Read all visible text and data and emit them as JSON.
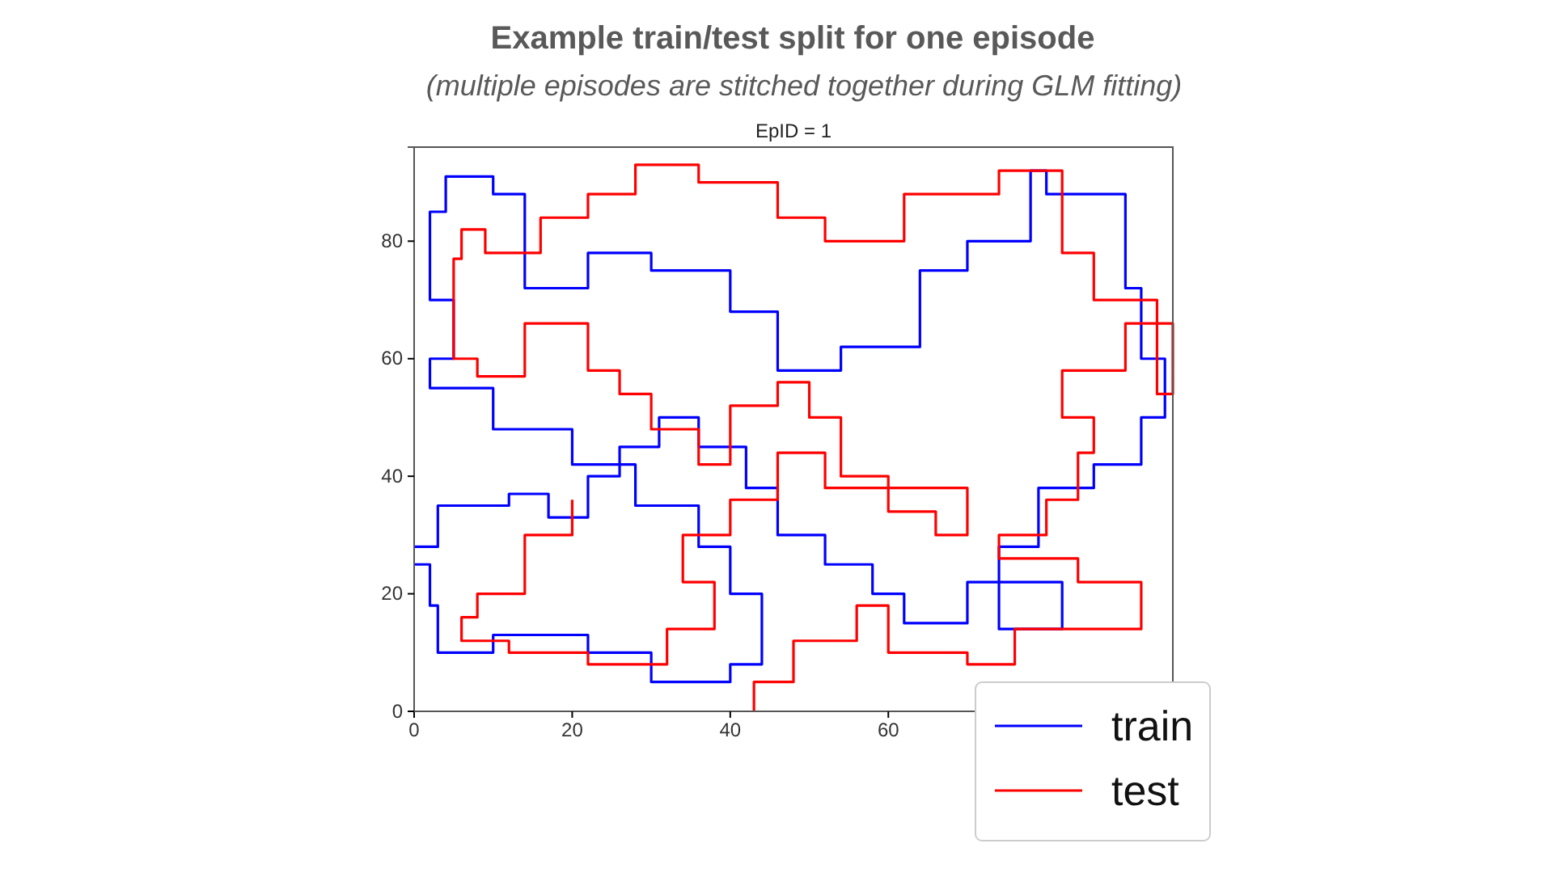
{
  "chart_data": {
    "type": "line",
    "title": "Example train/test split for one episode",
    "subtitle": "(multiple episodes are stitched together during GLM fitting)",
    "annotations": [
      "EpID = 1"
    ],
    "xlim": [
      0,
      96
    ],
    "ylim": [
      0,
      96
    ],
    "xticks": [
      0,
      20,
      40,
      60
    ],
    "yticks": [
      0,
      20,
      40,
      60,
      80
    ],
    "legend": "bottom right",
    "line_style": "solid",
    "marker": "none",
    "grid": false,
    "series": [
      {
        "name": "train",
        "color": "#0000ff",
        "x": [
          0,
          3,
          3,
          12,
          12,
          17,
          17,
          22,
          22,
          26,
          26,
          31,
          31,
          36,
          36,
          42,
          42,
          46,
          46,
          52,
          52,
          58,
          58,
          62,
          62,
          70,
          70,
          82,
          82,
          74,
          74,
          79,
          79,
          86,
          86,
          92,
          92,
          95,
          95,
          92,
          92,
          90,
          90,
          80,
          80,
          78,
          78,
          70,
          70,
          64,
          64,
          54,
          54,
          46,
          46,
          40,
          40,
          30,
          30,
          22,
          22,
          14,
          14,
          10,
          10,
          4,
          4,
          2,
          2,
          5,
          5,
          2,
          2,
          10,
          10,
          20,
          20,
          28,
          28,
          36,
          36,
          40,
          40,
          44,
          44,
          40,
          40,
          30,
          30,
          22,
          22,
          10,
          10,
          3,
          3,
          2,
          2,
          0
        ],
        "values": [
          28,
          28,
          35,
          35,
          37,
          37,
          33,
          33,
          40,
          40,
          45,
          45,
          50,
          50,
          45,
          45,
          38,
          38,
          30,
          30,
          25,
          25,
          20,
          20,
          15,
          15,
          22,
          22,
          14,
          14,
          28,
          28,
          38,
          38,
          42,
          42,
          50,
          50,
          60,
          60,
          72,
          72,
          88,
          88,
          92,
          92,
          80,
          80,
          75,
          75,
          62,
          62,
          58,
          58,
          68,
          68,
          75,
          75,
          78,
          78,
          72,
          72,
          88,
          88,
          91,
          91,
          85,
          85,
          70,
          70,
          60,
          60,
          55,
          55,
          48,
          48,
          42,
          42,
          35,
          35,
          28,
          28,
          20,
          20,
          8,
          8,
          5,
          5,
          10,
          10,
          13,
          13,
          10,
          10,
          18,
          18,
          25,
          25
        ]
      },
      {
        "name": "test",
        "color": "#ff0000",
        "x": [
          43,
          43,
          48,
          48,
          56,
          56,
          60,
          60,
          70,
          70,
          76,
          76,
          92,
          92,
          84,
          84,
          74,
          74,
          80,
          80,
          84,
          84,
          86,
          86,
          82,
          82,
          90,
          90,
          96,
          96,
          94,
          94,
          86,
          86,
          82,
          82,
          74,
          74,
          62,
          62,
          52,
          52,
          46,
          46,
          36,
          36,
          28,
          28,
          22,
          22,
          16,
          16,
          9,
          9,
          6,
          6,
          5,
          5,
          8,
          8,
          14,
          14,
          22,
          22,
          26,
          26,
          30,
          30,
          36,
          36,
          40,
          40,
          46,
          46,
          50,
          50,
          54,
          54,
          60,
          60,
          66,
          66,
          70,
          70,
          52,
          52,
          46,
          46,
          40,
          40,
          34,
          34,
          38,
          38,
          32,
          32,
          22,
          22,
          12,
          12,
          6,
          6,
          8,
          8,
          14,
          14,
          20,
          20
        ],
        "values": [
          0,
          5,
          5,
          12,
          12,
          18,
          18,
          10,
          10,
          8,
          8,
          14,
          14,
          22,
          22,
          26,
          26,
          30,
          30,
          36,
          36,
          44,
          44,
          50,
          50,
          58,
          58,
          66,
          66,
          54,
          54,
          70,
          70,
          78,
          78,
          92,
          92,
          88,
          88,
          80,
          80,
          84,
          84,
          90,
          90,
          93,
          93,
          88,
          88,
          84,
          84,
          78,
          78,
          82,
          82,
          77,
          77,
          60,
          60,
          57,
          57,
          66,
          66,
          58,
          58,
          54,
          54,
          48,
          48,
          42,
          42,
          52,
          52,
          56,
          56,
          50,
          50,
          40,
          40,
          34,
          34,
          30,
          30,
          38,
          38,
          44,
          44,
          36,
          36,
          30,
          30,
          22,
          22,
          14,
          14,
          8,
          8,
          10,
          10,
          12,
          12,
          16,
          16,
          20,
          20,
          30,
          30,
          36
        ]
      }
    ]
  }
}
